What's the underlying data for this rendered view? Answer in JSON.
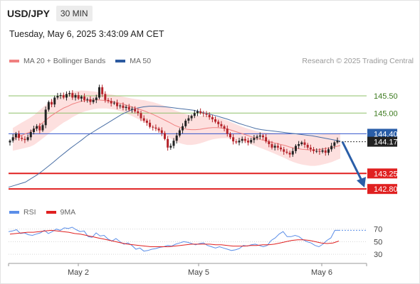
{
  "header": {
    "symbol": "USD/JPY",
    "timeframe": "30 MIN"
  },
  "timestamp": "Tuesday, May 6, 2025 3:43:09 AM CET",
  "legend": {
    "ma20_label": "MA 20 + Bollinger Bands",
    "ma50_label": "MA 50",
    "rsi_label": "RSI",
    "ma9_label": "9MA"
  },
  "credit": "Research © 2025 Trading Central",
  "colors": {
    "up": "#222222",
    "down": "#b5232a",
    "ma20": "#f08080",
    "bands": "#fde0df",
    "ma50": "#4a6fa5",
    "resistance": "#8fc06a",
    "support": "#e02020",
    "pivot": "#3355cc",
    "arrow": "#2a5ea8",
    "rsi": "#5b8ee8",
    "rsi_ma": "#e02020"
  },
  "chart_data": [
    {
      "type": "candlestick",
      "ylim": [
        142.68,
        146.22
      ],
      "x_tick_labels": [
        "May 2",
        "May 5",
        "May 6"
      ],
      "current_price": "144.17",
      "levels": [
        {
          "value": 145.5,
          "label": "145.50",
          "kind": "resistance"
        },
        {
          "value": 145.0,
          "label": "145.00",
          "kind": "resistance"
        },
        {
          "value": 144.4,
          "label": "144.40",
          "kind": "pivot"
        },
        {
          "value": 143.25,
          "label": "143.25",
          "kind": "support"
        },
        {
          "value": 142.8,
          "label": "142.80",
          "kind": "support"
        }
      ],
      "closes": [
        144.2,
        144.3,
        144.4,
        144.28,
        144.25,
        144.22,
        144.3,
        144.45,
        144.55,
        144.62,
        144.5,
        144.65,
        145.1,
        145.32,
        145.25,
        145.45,
        145.5,
        145.52,
        145.45,
        145.55,
        145.58,
        145.45,
        145.52,
        145.42,
        145.48,
        145.38,
        145.4,
        145.32,
        145.38,
        145.45,
        145.75,
        145.55,
        145.38,
        145.35,
        145.28,
        145.3,
        145.2,
        145.22,
        145.15,
        145.18,
        145.1,
        145.12,
        145.05,
        145.0,
        144.85,
        144.78,
        144.72,
        144.6,
        144.58,
        144.55,
        144.5,
        144.42,
        144.25,
        144.0,
        144.05,
        144.2,
        144.35,
        144.5,
        144.62,
        144.78,
        144.85,
        144.92,
        145.0,
        145.05,
        145.0,
        144.98,
        144.95,
        144.88,
        144.82,
        144.75,
        144.68,
        144.62,
        144.55,
        144.4,
        144.3,
        144.18,
        144.15,
        144.2,
        144.25,
        144.2,
        144.15,
        144.22,
        144.28,
        144.32,
        144.35,
        144.3,
        144.18,
        144.1,
        144.0,
        144.05,
        144.0,
        143.95,
        143.88,
        143.85,
        143.8,
        143.9,
        144.05,
        144.1,
        144.15,
        144.08,
        144.0,
        143.95,
        143.9,
        143.9,
        143.88,
        143.92,
        143.85,
        143.95,
        144.05,
        144.15,
        144.2
      ],
      "ma20": [
        144.25,
        144.3,
        144.35,
        144.4,
        144.45,
        144.52,
        144.62,
        144.72,
        144.82,
        144.92,
        145.0,
        145.08,
        145.15,
        145.2,
        145.26,
        145.3,
        145.34,
        145.36,
        145.37,
        145.38,
        145.38,
        145.37,
        145.36,
        145.34,
        145.32,
        145.29,
        145.26,
        145.22,
        145.18,
        145.14,
        145.1,
        145.06,
        145.01,
        144.96,
        144.9,
        144.84,
        144.78,
        144.72,
        144.65,
        144.6,
        144.56,
        144.53,
        144.52,
        144.52,
        144.53,
        144.55,
        144.57,
        144.58,
        144.58,
        144.57,
        144.55,
        144.52,
        144.48,
        144.44,
        144.4,
        144.36,
        144.32,
        144.28,
        144.24,
        144.21,
        144.18,
        144.15,
        144.12,
        144.09,
        144.06,
        144.02,
        143.99,
        143.97,
        143.95,
        143.94,
        143.93,
        143.93,
        143.94,
        143.96,
        143.98,
        144.0,
        144.03,
        144.06
      ],
      "ma20_start_x": 18,
      "ma50": [
        142.85,
        142.9,
        142.95,
        143.0,
        143.1,
        143.2,
        143.32,
        143.45,
        143.58,
        143.72,
        143.85,
        143.98,
        144.1,
        144.22,
        144.35,
        144.45,
        144.55,
        144.65,
        144.75,
        144.85,
        144.95,
        145.03,
        145.1,
        145.15,
        145.18,
        145.2,
        145.2,
        145.19,
        145.18,
        145.16,
        145.14,
        145.12,
        145.1,
        145.08,
        145.04,
        145.0,
        144.96,
        144.92,
        144.87,
        144.82,
        144.76,
        144.7,
        144.65,
        144.6,
        144.55,
        144.52,
        144.5,
        144.48,
        144.46,
        144.44,
        144.42,
        144.4,
        144.38,
        144.36,
        144.34,
        144.31,
        144.28,
        144.25,
        144.22,
        144.19
      ],
      "ma50_start_x": 12,
      "projection_from": 144.17,
      "projection_to": 142.8
    },
    {
      "type": "line",
      "name": "RSI",
      "ylim": [
        20,
        82
      ],
      "y_tick_labels": [
        "70",
        "50",
        "30"
      ],
      "rsi": [
        66,
        67,
        69,
        63,
        64,
        61,
        60,
        62,
        64,
        68,
        63,
        66,
        70,
        68,
        72,
        71,
        73,
        69,
        66,
        67,
        58,
        57,
        64,
        59,
        60,
        54,
        51,
        55,
        50,
        46,
        48,
        44,
        38,
        40,
        35,
        36,
        38,
        39,
        41,
        42,
        44,
        43,
        46,
        48,
        50,
        49,
        47,
        45,
        47,
        48,
        44,
        42,
        40,
        42,
        40,
        38,
        36,
        37,
        39,
        44,
        43,
        45,
        46,
        44,
        42,
        44,
        52,
        56,
        62,
        66,
        58,
        58,
        60,
        58,
        53,
        50,
        48,
        44,
        42,
        46,
        52,
        56,
        68,
        68
      ],
      "rsi_ma": [
        62,
        63,
        64,
        65,
        65,
        66,
        67,
        68,
        67,
        66,
        65,
        63,
        62,
        60,
        58,
        56,
        54,
        52,
        50,
        48,
        46,
        45,
        44,
        43,
        42,
        42,
        42,
        42,
        43,
        44,
        45,
        46,
        46,
        46,
        46,
        45,
        45,
        44,
        43,
        43,
        43,
        44,
        44,
        45,
        45,
        46,
        48,
        50,
        52,
        53,
        53,
        52,
        50,
        48,
        47,
        48,
        51
      ]
    }
  ]
}
